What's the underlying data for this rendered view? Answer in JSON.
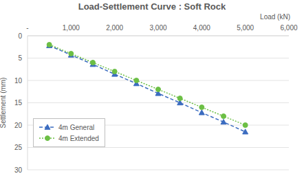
{
  "chart_data": {
    "type": "line",
    "title": "Load-Settlement Curve : Soft Rock",
    "x_label": "Load (kN)",
    "y_label": "Settlement (mm)",
    "x": [
      500,
      1000,
      1500,
      2000,
      2500,
      3000,
      3500,
      4000,
      4500,
      5000
    ],
    "series": [
      {
        "name": "4m General",
        "color": "#3b6cc0",
        "marker": "triangle",
        "line_style": "dashed",
        "values": [
          2.2,
          4.3,
          6.4,
          8.6,
          10.7,
          12.9,
          15.0,
          17.2,
          19.3,
          21.5
        ]
      },
      {
        "name": "4m Extended",
        "color": "#6cbf45",
        "marker": "circle",
        "line_style": "dotted",
        "values": [
          2.0,
          4.0,
          6.0,
          8.0,
          10.0,
          12.0,
          14.0,
          16.0,
          18.0,
          20.0
        ]
      }
    ],
    "xlim": [
      0,
      6000
    ],
    "xticks": [
      {
        "value": 0,
        "label": "-"
      },
      {
        "value": 1000,
        "label": "1,000"
      },
      {
        "value": 2000,
        "label": "2,000"
      },
      {
        "value": 3000,
        "label": "3,000"
      },
      {
        "value": 4000,
        "label": "4,000"
      },
      {
        "value": 5000,
        "label": "5,000"
      },
      {
        "value": 6000,
        "label": "6,000"
      }
    ],
    "ylim": [
      0,
      30
    ],
    "yticks": [
      0,
      5,
      10,
      15,
      20,
      25,
      30
    ],
    "grid": true,
    "legend": "lower left"
  }
}
